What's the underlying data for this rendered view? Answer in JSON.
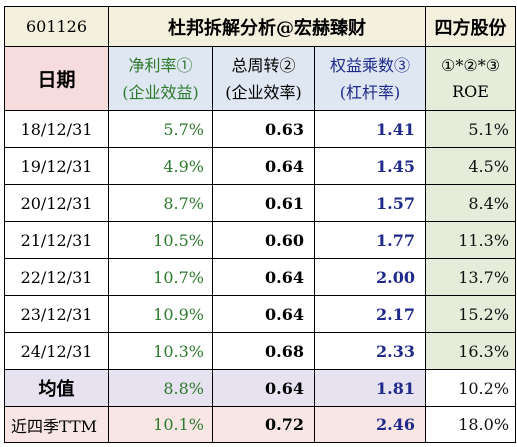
{
  "header": {
    "code": "601126",
    "title": "杜邦拆解分析@宏赫臻财",
    "brand": "四方股份"
  },
  "columns": {
    "date": "日期",
    "net_margin": [
      "净利率①",
      "(企业效益)"
    ],
    "turnover": [
      "总周转②",
      "(企业效率)"
    ],
    "leverage": [
      "权益乘数③",
      "(杠杆率)"
    ],
    "roe": [
      "①*②*③",
      "ROE"
    ]
  },
  "rows": [
    {
      "date": "18/12/31",
      "net_margin": "5.7%",
      "turnover": "0.63",
      "leverage": "1.41",
      "roe": "5.1%"
    },
    {
      "date": "19/12/31",
      "net_margin": "4.9%",
      "turnover": "0.64",
      "leverage": "1.45",
      "roe": "4.5%"
    },
    {
      "date": "20/12/31",
      "net_margin": "8.7%",
      "turnover": "0.61",
      "leverage": "1.57",
      "roe": "8.4%"
    },
    {
      "date": "21/12/31",
      "net_margin": "10.5%",
      "turnover": "0.60",
      "leverage": "1.77",
      "roe": "11.3%"
    },
    {
      "date": "22/12/31",
      "net_margin": "10.7%",
      "turnover": "0.64",
      "leverage": "2.00",
      "roe": "13.7%"
    },
    {
      "date": "23/12/31",
      "net_margin": "10.9%",
      "turnover": "0.64",
      "leverage": "2.17",
      "roe": "15.2%"
    },
    {
      "date": "24/12/31",
      "net_margin": "10.3%",
      "turnover": "0.68",
      "leverage": "2.33",
      "roe": "16.3%"
    }
  ],
  "average": {
    "label": "均值",
    "net_margin": "8.8%",
    "turnover": "0.64",
    "leverage": "1.81",
    "roe": "10.2%"
  },
  "ttm": {
    "label": "近四季TTM",
    "net_margin": "10.1%",
    "turnover": "0.72",
    "leverage": "2.46",
    "roe": "18.0%"
  },
  "colors": {
    "net_margin_text": "#2d7a2d",
    "leverage_text": "#1f2a8a",
    "title_bg": "#f3f1de",
    "date_header_bg": "#f6dcdc",
    "metric_header_bg": "#dfe7f3",
    "roe_bg": "#e5ecd9",
    "average_bg": "#e7e2ef",
    "ttm_bg": "#f8e6e5"
  }
}
